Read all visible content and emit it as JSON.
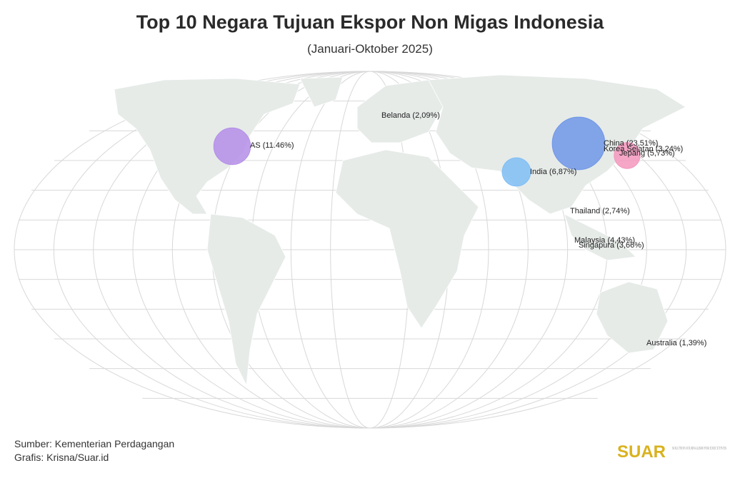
{
  "title": "Top 10 Negara Tujuan Ekspor Non Migas Indonesia",
  "subtitle": "(Januari-Oktober 2025)",
  "points": [
    {
      "label": "AS (11.46%)",
      "value": 11.46,
      "color": "#b48ee8"
    },
    {
      "label": "China (23,51%)",
      "value": 23.51,
      "color": "#6f96e8"
    },
    {
      "label": "Jepang (5,73%)",
      "value": 5.73,
      "color": "#f497bd"
    },
    {
      "label": "Korea Selatan (3,24%)",
      "value": 3.24
    },
    {
      "label": "India (6,87%)",
      "value": 6.87,
      "color": "#7fbef5"
    },
    {
      "label": "Belanda (2,09%)",
      "value": 2.09
    },
    {
      "label": "Thailand (2,74%)",
      "value": 2.74
    },
    {
      "label": "Malaysia (4,43%)",
      "value": 4.43
    },
    {
      "label": "Singapura (3,66%)",
      "value": 3.66
    },
    {
      "label": "Australia (1,39%)",
      "value": 1.39
    }
  ],
  "footer": {
    "source": "Sumber: Kementerian Perdagangan",
    "credit": "Grafis: Krisna/Suar.id"
  },
  "logo": {
    "name": "SUAR",
    "tagline": "SOLUTION JOURNALISM FOR EXECUTIVES"
  }
}
